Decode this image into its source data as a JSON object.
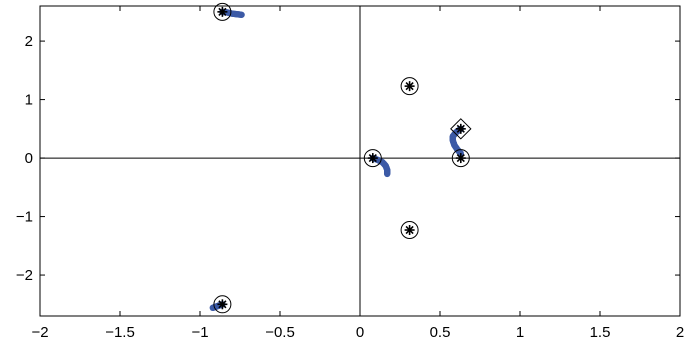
{
  "chart_data": {
    "type": "scatter",
    "title": "",
    "xlabel": "",
    "ylabel": "",
    "xlim": [
      -2,
      2
    ],
    "ylim": [
      -2.7,
      2.6
    ],
    "x_ticks": [
      -2,
      -1.5,
      -1,
      -0.5,
      0,
      0.5,
      1,
      1.5,
      2
    ],
    "x_tick_labels": [
      "−2",
      "−1.5",
      "−1",
      "−0.5",
      "0",
      "0.5",
      "1",
      "1.5",
      "2"
    ],
    "y_ticks": [
      -2,
      -1,
      0,
      1,
      2
    ],
    "y_tick_labels": [
      "−2",
      "−1",
      "0",
      "1",
      "2"
    ],
    "zero_lines": true,
    "grid": false,
    "colors": {
      "trajectory": "#3c5aa6",
      "marker": "#000000",
      "axes": "#000000"
    },
    "series": [
      {
        "marker": "circle-with-asterisk",
        "points": [
          {
            "x": -0.86,
            "y": 2.5
          },
          {
            "x": -0.86,
            "y": -2.5
          },
          {
            "x": 0.31,
            "y": 1.23
          },
          {
            "x": 0.31,
            "y": -1.23
          },
          {
            "x": 0.08,
            "y": 0.0
          },
          {
            "x": 0.63,
            "y": 0.0
          }
        ]
      },
      {
        "marker": "diamond-with-asterisk",
        "points": [
          {
            "x": 0.63,
            "y": 0.5
          }
        ]
      },
      {
        "marker": "dot-trajectory",
        "paths": [
          [
            [
              -0.86,
              2.5
            ],
            [
              -0.83,
              2.49
            ],
            [
              -0.8,
              2.47
            ],
            [
              -0.77,
              2.46
            ],
            [
              -0.74,
              2.45
            ]
          ],
          [
            [
              -0.86,
              -2.5
            ],
            [
              -0.88,
              -2.52
            ],
            [
              -0.9,
              -2.54
            ],
            [
              -0.92,
              -2.56
            ]
          ],
          [
            [
              0.08,
              0.0
            ],
            [
              0.11,
              -0.03
            ],
            [
              0.14,
              -0.07
            ],
            [
              0.16,
              -0.13
            ],
            [
              0.17,
              -0.2
            ],
            [
              0.17,
              -0.27
            ]
          ],
          [
            [
              0.63,
              0.5
            ],
            [
              0.6,
              0.44
            ],
            [
              0.58,
              0.37
            ],
            [
              0.58,
              0.3
            ],
            [
              0.59,
              0.22
            ],
            [
              0.61,
              0.14
            ],
            [
              0.63,
              0.08
            ]
          ]
        ]
      }
    ]
  }
}
